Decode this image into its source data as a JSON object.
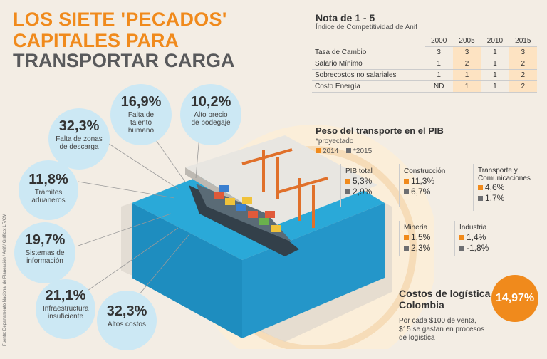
{
  "title": {
    "line1": "LOS SIETE 'PECADOS'",
    "line2": "CAPITALES PARA",
    "line3": "TRANSPORTAR CARGA"
  },
  "sins": [
    {
      "value": "32,3%",
      "label": "Falta de zonas de descarga"
    },
    {
      "value": "16,9%",
      "label": "Falta de talento humano"
    },
    {
      "value": "10,2%",
      "label": "Alto precio de bodegaje"
    },
    {
      "value": "11,8%",
      "label": "Trámites aduaneros"
    },
    {
      "value": "19,7%",
      "label": "Sistemas de información"
    },
    {
      "value": "21,1%",
      "label": "Infraestructura insuficiente"
    },
    {
      "value": "32,3%",
      "label": "Altos costos"
    }
  ],
  "source": "Fuente: Departamento Nacional de Planeación / Anif / Gráfico: LR/CM",
  "nota": {
    "title": "Nota de 1 - 5",
    "subtitle": "Índice de Competitividad de Anif",
    "years": [
      "2000",
      "2005",
      "2010",
      "2015"
    ],
    "rows": [
      {
        "label": "Tasa de Cambio",
        "values": [
          "3",
          "3",
          "1",
          "3"
        ]
      },
      {
        "label": "Salario Mínimo",
        "values": [
          "1",
          "2",
          "1",
          "2"
        ]
      },
      {
        "label": "Sobrecostos no salariales",
        "values": [
          "1",
          "1",
          "1",
          "2"
        ]
      },
      {
        "label": "Costo Energía",
        "values": [
          "ND",
          "1",
          "1",
          "2"
        ]
      }
    ]
  },
  "pib": {
    "title": "Peso del transporte en el PIB",
    "note": "*proyectado",
    "legend": [
      "2014",
      "*2015"
    ],
    "colors": {
      "y2014": "#f08a1c",
      "y2015": "#6d6e71"
    },
    "items": [
      {
        "name": "PIB total",
        "v2014": "5,3%",
        "v2015": "2,9%"
      },
      {
        "name": "Construcción",
        "v2014": "11,3%",
        "v2015": "6,7%"
      },
      {
        "name": "Transporte y Comunicaciones",
        "v2014": "4,6%",
        "v2015": "1,7%"
      },
      {
        "name": "Minería",
        "v2014": "1,5%",
        "v2015": "2,3%"
      },
      {
        "name": "Industria",
        "v2014": "1,4%",
        "v2015": "-1,8%"
      }
    ]
  },
  "logistica": {
    "title": "Costos de logística Colombia",
    "value": "14,97%",
    "desc": "Por cada $100 de venta, $15 se gastan en procesos de logística"
  },
  "colors": {
    "accent": "#f08a1c",
    "bubble": "#cce8f4",
    "water": "#2aa9d8",
    "dark": "#58595b"
  }
}
